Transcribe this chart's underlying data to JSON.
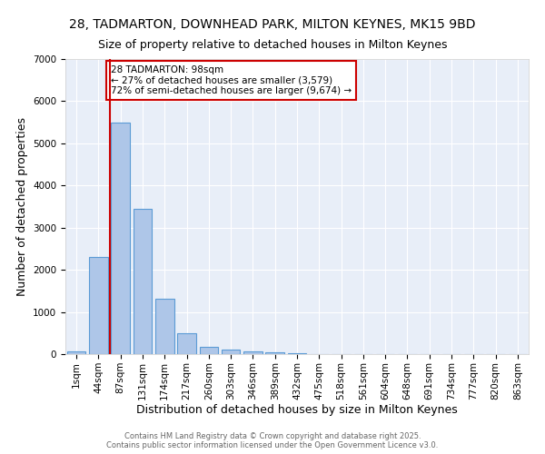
{
  "title": "28, TADMARTON, DOWNHEAD PARK, MILTON KEYNES, MK15 9BD",
  "subtitle": "Size of property relative to detached houses in Milton Keynes",
  "xlabel": "Distribution of detached houses by size in Milton Keynes",
  "ylabel": "Number of detached properties",
  "categories": [
    "1sqm",
    "44sqm",
    "87sqm",
    "131sqm",
    "174sqm",
    "217sqm",
    "260sqm",
    "303sqm",
    "346sqm",
    "389sqm",
    "432sqm",
    "475sqm",
    "518sqm",
    "561sqm",
    "604sqm",
    "648sqm",
    "691sqm",
    "734sqm",
    "777sqm",
    "820sqm",
    "863sqm"
  ],
  "values": [
    70,
    2300,
    5500,
    3450,
    1320,
    490,
    175,
    105,
    75,
    45,
    20,
    5,
    2,
    1,
    1,
    0,
    0,
    0,
    0,
    0,
    0
  ],
  "bar_color": "#aec6e8",
  "bar_edge_color": "#5b9bd5",
  "red_line_x": 1.5,
  "red_line_color": "#cc0000",
  "ylim": [
    0,
    7000
  ],
  "yticks": [
    0,
    1000,
    2000,
    3000,
    4000,
    5000,
    6000,
    7000
  ],
  "annotation_text": "28 TADMARTON: 98sqm\n← 27% of detached houses are smaller (3,579)\n72% of semi-detached houses are larger (9,674) →",
  "annotation_box_color": "#ffffff",
  "annotation_box_edge_color": "#cc0000",
  "footer_line1": "Contains HM Land Registry data © Crown copyright and database right 2025.",
  "footer_line2": "Contains public sector information licensed under the Open Government Licence v3.0.",
  "background_color": "#e8eef8",
  "title_fontsize": 10,
  "subtitle_fontsize": 9,
  "tick_fontsize": 7.5,
  "label_fontsize": 9,
  "annotation_fontsize": 7.5,
  "footer_fontsize": 6
}
